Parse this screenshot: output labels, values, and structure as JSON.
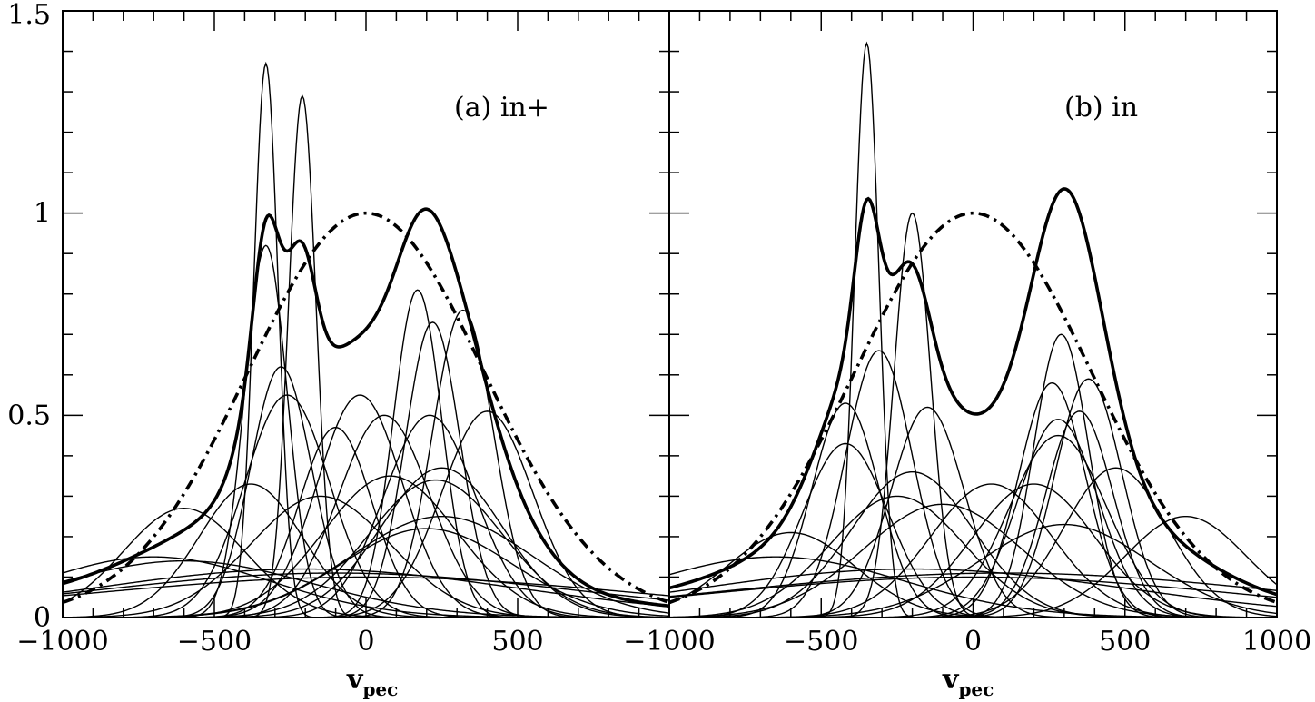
{
  "chart_data": [
    {
      "type": "line",
      "panel_label": "(a) in+",
      "xlabel_main": "v",
      "xlabel_sub": "pec",
      "xlim": [
        -1000,
        1000
      ],
      "ylim": [
        0,
        1.5
      ],
      "x_tick_labels": [
        "−1000",
        "−500",
        "0",
        "500"
      ],
      "y_tick_labels": [
        "0",
        "0.5",
        "1",
        "1.5"
      ],
      "reference_curve": {
        "style": "dash-dot",
        "center": 0,
        "sigma": 390,
        "amplitude": 1.0
      },
      "components": [
        {
          "center": -330,
          "sigma": 40,
          "amplitude": 1.37
        },
        {
          "center": -210,
          "sigma": 45,
          "amplitude": 1.29
        },
        {
          "center": -330,
          "sigma": 70,
          "amplitude": 0.92
        },
        {
          "center": -280,
          "sigma": 100,
          "amplitude": 0.62
        },
        {
          "center": -260,
          "sigma": 140,
          "amplitude": 0.55
        },
        {
          "center": -100,
          "sigma": 120,
          "amplitude": 0.47
        },
        {
          "center": -20,
          "sigma": 140,
          "amplitude": 0.55
        },
        {
          "center": 60,
          "sigma": 150,
          "amplitude": 0.5
        },
        {
          "center": 170,
          "sigma": 80,
          "amplitude": 0.81
        },
        {
          "center": 220,
          "sigma": 90,
          "amplitude": 0.73
        },
        {
          "center": 320,
          "sigma": 100,
          "amplitude": 0.76
        },
        {
          "center": 210,
          "sigma": 150,
          "amplitude": 0.5
        },
        {
          "center": 400,
          "sigma": 150,
          "amplitude": 0.51
        },
        {
          "center": 250,
          "sigma": 200,
          "amplitude": 0.37
        },
        {
          "center": 230,
          "sigma": 220,
          "amplitude": 0.34
        },
        {
          "center": 80,
          "sigma": 220,
          "amplitude": 0.35
        },
        {
          "center": -380,
          "sigma": 170,
          "amplitude": 0.33
        },
        {
          "center": -150,
          "sigma": 230,
          "amplitude": 0.3
        },
        {
          "center": -600,
          "sigma": 200,
          "amplitude": 0.27
        },
        {
          "center": 250,
          "sigma": 300,
          "amplitude": 0.25
        },
        {
          "center": 200,
          "sigma": 280,
          "amplitude": 0.22
        },
        {
          "center": -700,
          "sigma": 380,
          "amplitude": 0.15
        },
        {
          "center": -600,
          "sigma": 420,
          "amplitude": 0.14
        },
        {
          "center": -200,
          "sigma": 700,
          "amplitude": 0.12
        },
        {
          "center": 0,
          "sigma": 900,
          "amplitude": 0.1
        },
        {
          "center": -100,
          "sigma": 800,
          "amplitude": 0.11
        }
      ]
    },
    {
      "type": "line",
      "panel_label": "(b) in",
      "xlabel_main": "v",
      "xlabel_sub": "pec",
      "xlim": [
        -1000,
        1000
      ],
      "ylim": [
        0,
        1.5
      ],
      "x_tick_labels": [
        "−1000",
        "−500",
        "0",
        "500",
        "1000"
      ],
      "y_tick_labels": [],
      "reference_curve": {
        "style": "dash-dot",
        "center": 0,
        "sigma": 390,
        "amplitude": 1.0
      },
      "components": [
        {
          "center": -350,
          "sigma": 40,
          "amplitude": 1.42
        },
        {
          "center": -200,
          "sigma": 60,
          "amplitude": 1.0
        },
        {
          "center": -310,
          "sigma": 110,
          "amplitude": 0.66
        },
        {
          "center": -420,
          "sigma": 110,
          "amplitude": 0.53
        },
        {
          "center": -420,
          "sigma": 140,
          "amplitude": 0.43
        },
        {
          "center": -150,
          "sigma": 120,
          "amplitude": 0.52
        },
        {
          "center": 290,
          "sigma": 90,
          "amplitude": 0.7
        },
        {
          "center": 380,
          "sigma": 110,
          "amplitude": 0.59
        },
        {
          "center": 260,
          "sigma": 110,
          "amplitude": 0.58
        },
        {
          "center": 350,
          "sigma": 110,
          "amplitude": 0.51
        },
        {
          "center": 280,
          "sigma": 130,
          "amplitude": 0.49
        },
        {
          "center": 280,
          "sigma": 160,
          "amplitude": 0.45
        },
        {
          "center": 470,
          "sigma": 170,
          "amplitude": 0.37
        },
        {
          "center": -200,
          "sigma": 200,
          "amplitude": 0.36
        },
        {
          "center": 60,
          "sigma": 200,
          "amplitude": 0.33
        },
        {
          "center": 200,
          "sigma": 200,
          "amplitude": 0.33
        },
        {
          "center": -250,
          "sigma": 220,
          "amplitude": 0.3
        },
        {
          "center": -100,
          "sigma": 260,
          "amplitude": 0.28
        },
        {
          "center": 700,
          "sigma": 200,
          "amplitude": 0.25
        },
        {
          "center": -600,
          "sigma": 210,
          "amplitude": 0.21
        },
        {
          "center": 300,
          "sigma": 280,
          "amplitude": 0.23
        },
        {
          "center": -650,
          "sigma": 420,
          "amplitude": 0.15
        },
        {
          "center": 0,
          "sigma": 850,
          "amplitude": 0.1
        },
        {
          "center": 100,
          "sigma": 900,
          "amplitude": 0.11
        },
        {
          "center": -200,
          "sigma": 700,
          "amplitude": 0.12
        }
      ]
    }
  ]
}
